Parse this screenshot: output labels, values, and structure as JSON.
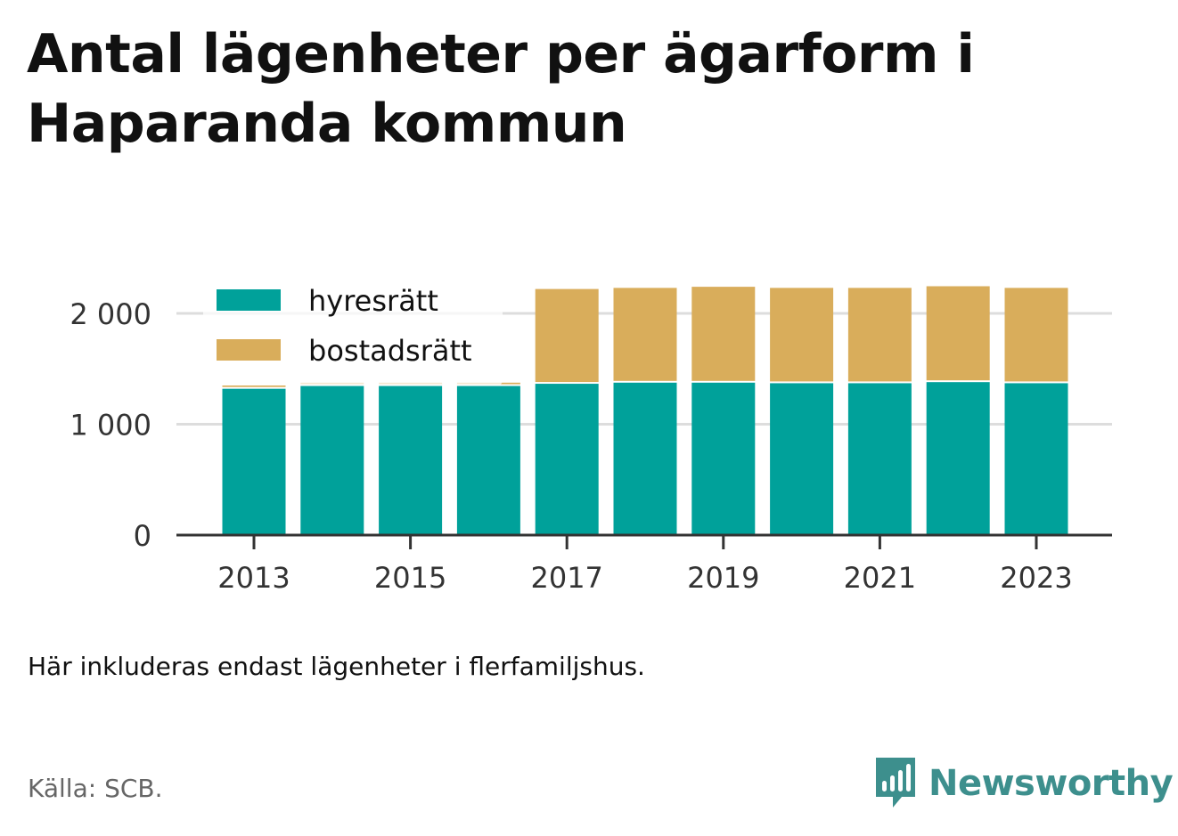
{
  "title": "Antal lägenheter per ägarform i Haparanda kommun",
  "note": "Här inkluderas endast lägenheter i flerfamiljshus.",
  "source": "Källa: SCB.",
  "brand": {
    "name": "Newsworthy",
    "icon": "newsworthy-logo-icon",
    "color": "#3d8f8d"
  },
  "chart_data": {
    "type": "bar",
    "stacked": true,
    "categories": [
      "2013",
      "2014",
      "2015",
      "2016",
      "2017",
      "2018",
      "2019",
      "2020",
      "2021",
      "2022",
      "2023"
    ],
    "series": [
      {
        "name": "hyresrätt",
        "color": "#00a19a",
        "values": [
          1320,
          1345,
          1345,
          1345,
          1365,
          1375,
          1375,
          1370,
          1370,
          1380,
          1370
        ]
      },
      {
        "name": "bostadsrätt",
        "color": "#d9ad5b",
        "values": [
          30,
          30,
          30,
          30,
          855,
          855,
          865,
          860,
          860,
          865,
          860
        ]
      }
    ],
    "ylim": [
      0,
      2250
    ],
    "yticks": [
      0,
      1000,
      2000
    ],
    "ytick_labels": [
      "0",
      "1 000",
      "2 000"
    ],
    "xtick_labels": [
      "2013",
      "2015",
      "2017",
      "2019",
      "2021",
      "2023"
    ],
    "legend": {
      "placement": "top-left"
    },
    "grid": "horizontal"
  }
}
